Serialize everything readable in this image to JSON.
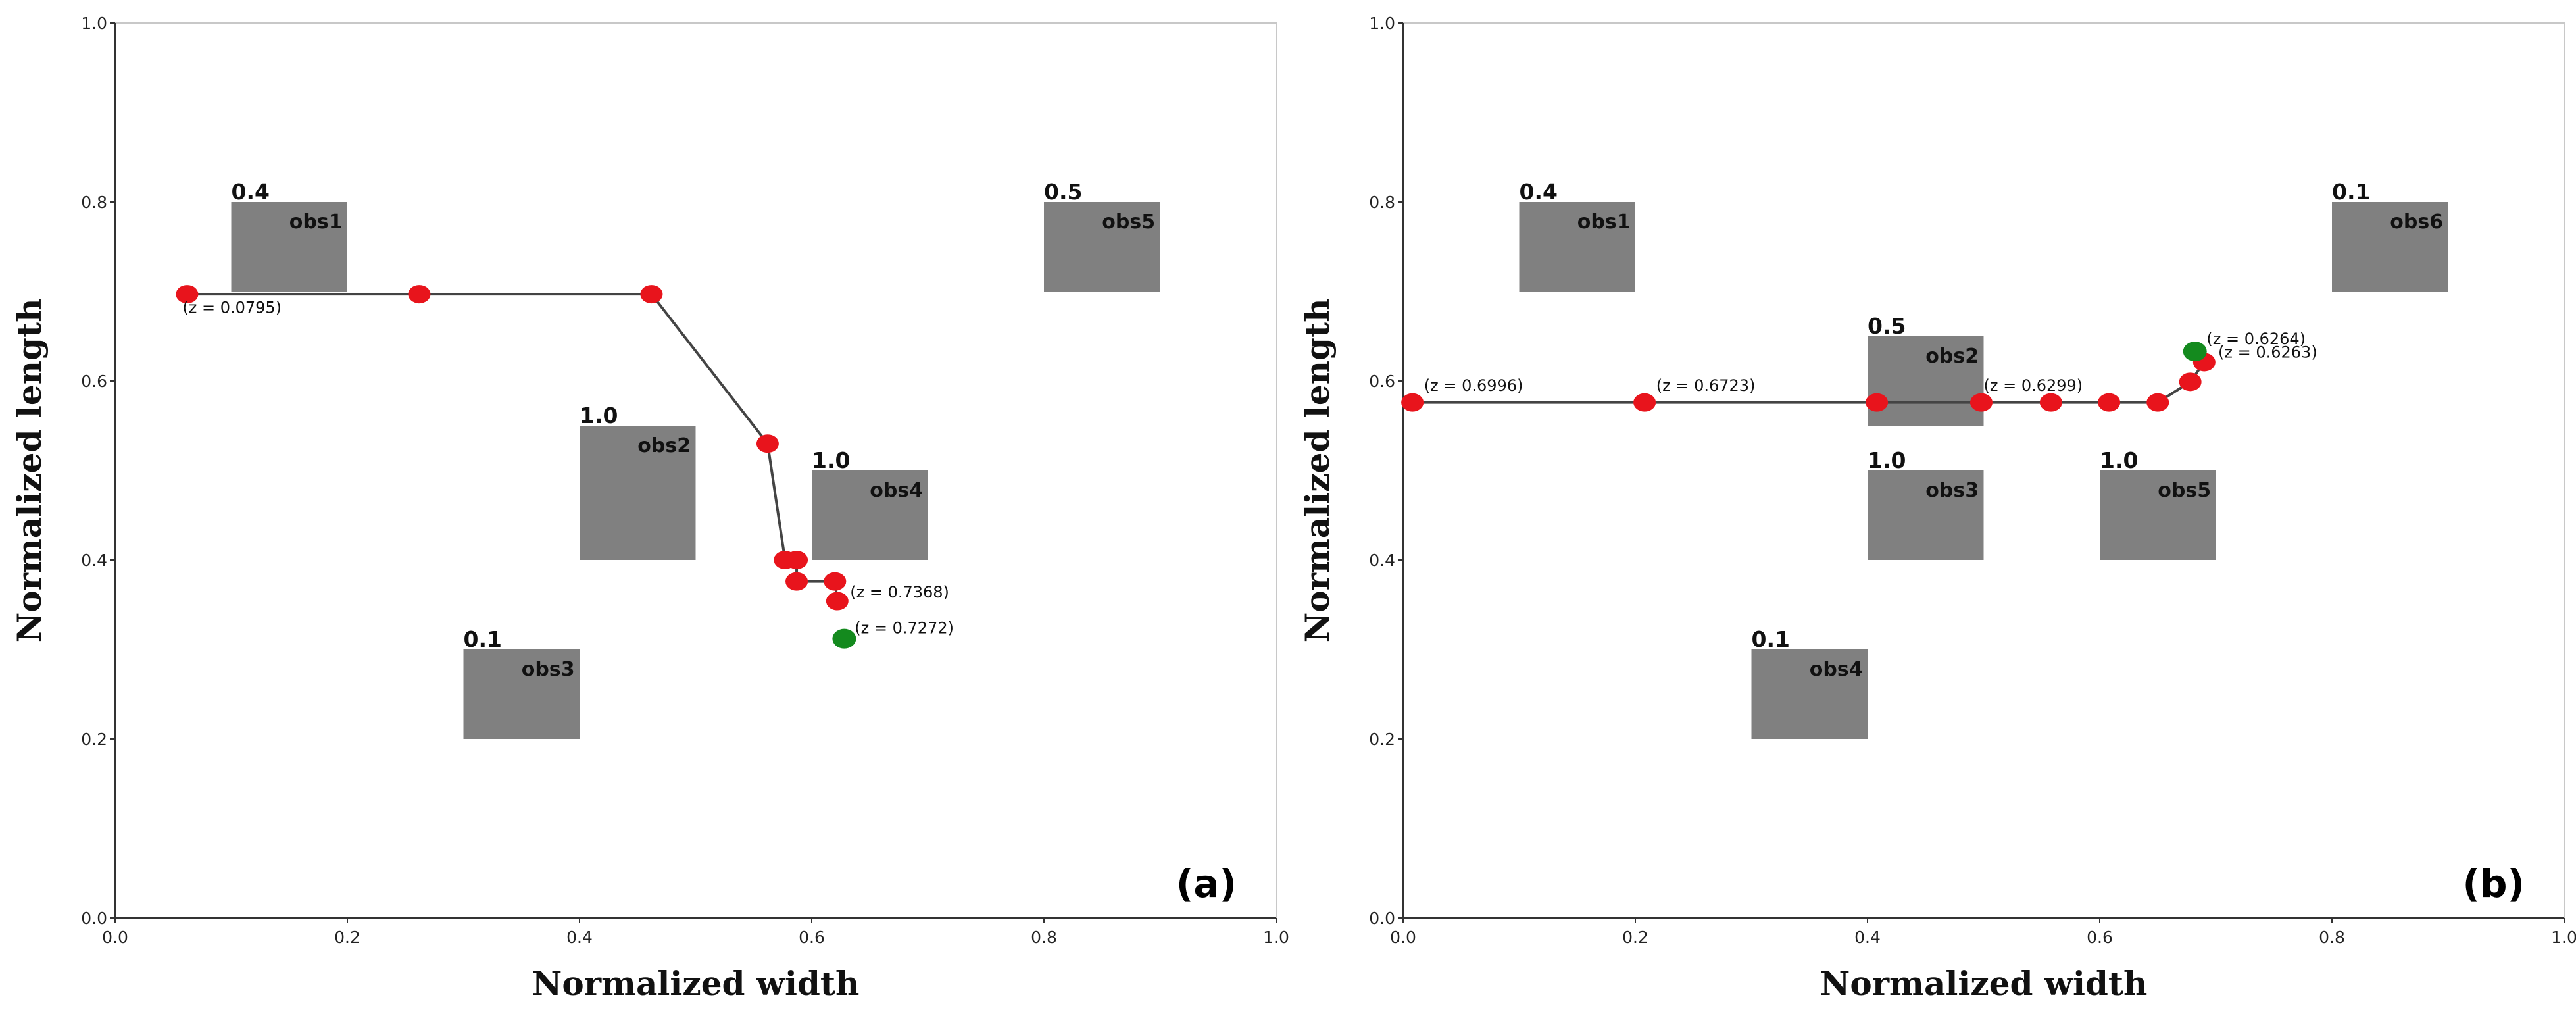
{
  "chart_data": [
    {
      "type": "scatter",
      "panel_label": "(a)",
      "xlabel": "Normalized width",
      "ylabel": "Normalized length",
      "xlim": [
        0.0,
        1.0
      ],
      "ylim": [
        0.0,
        1.0
      ],
      "x_ticks": [
        "0.0",
        "0.2",
        "0.4",
        "0.6",
        "0.8",
        "1.0"
      ],
      "y_ticks": [
        "0.0",
        "0.2",
        "0.4",
        "0.6",
        "0.8",
        "1.0"
      ],
      "grid": false,
      "obstacles": [
        {
          "name": "obs1",
          "value": "0.4",
          "x0": 0.1,
          "y0": 0.7,
          "x1": 0.2,
          "y1": 0.8
        },
        {
          "name": "obs2",
          "value": "1.0",
          "x0": 0.4,
          "y0": 0.4,
          "x1": 0.5,
          "y1": 0.55
        },
        {
          "name": "obs3",
          "value": "0.1",
          "x0": 0.3,
          "y0": 0.2,
          "x1": 0.4,
          "y1": 0.3
        },
        {
          "name": "obs4",
          "value": "1.0",
          "x0": 0.6,
          "y0": 0.4,
          "x1": 0.7,
          "y1": 0.5
        },
        {
          "name": "obs5",
          "value": "0.5",
          "x0": 0.8,
          "y0": 0.7,
          "x1": 0.9,
          "y1": 0.8
        }
      ],
      "path": {
        "x": [
          0.062,
          0.262,
          0.462,
          0.562,
          0.577,
          0.587,
          0.587,
          0.62,
          0.622
        ],
        "y": [
          0.697,
          0.697,
          0.697,
          0.53,
          0.4,
          0.4,
          0.376,
          0.376,
          0.354
        ]
      },
      "goal": {
        "x": 0.628,
        "y": 0.312
      },
      "annotations": [
        {
          "text": "(z = 0.0795)",
          "x": 0.058,
          "y": 0.676,
          "anchor": "start"
        },
        {
          "text": "(z = 0.7368)",
          "x": 0.633,
          "y": 0.358,
          "anchor": "start"
        },
        {
          "text": "(z = 0.7272)",
          "x": 0.637,
          "y": 0.318,
          "anchor": "start"
        }
      ]
    },
    {
      "type": "scatter",
      "panel_label": "(b)",
      "xlabel": "Normalized width",
      "ylabel": "Normalized length",
      "xlim": [
        0.0,
        1.0
      ],
      "ylim": [
        0.0,
        1.0
      ],
      "x_ticks": [
        "0.0",
        "0.2",
        "0.4",
        "0.6",
        "0.8",
        "1.0"
      ],
      "y_ticks": [
        "0.0",
        "0.2",
        "0.4",
        "0.6",
        "0.8",
        "1.0"
      ],
      "grid": false,
      "obstacles": [
        {
          "name": "obs1",
          "value": "0.4",
          "x0": 0.1,
          "y0": 0.7,
          "x1": 0.2,
          "y1": 0.8
        },
        {
          "name": "obs2",
          "value": "0.5",
          "x0": 0.4,
          "y0": 0.55,
          "x1": 0.5,
          "y1": 0.65
        },
        {
          "name": "obs3",
          "value": "1.0",
          "x0": 0.4,
          "y0": 0.4,
          "x1": 0.5,
          "y1": 0.5
        },
        {
          "name": "obs4",
          "value": "0.1",
          "x0": 0.3,
          "y0": 0.2,
          "x1": 0.4,
          "y1": 0.3
        },
        {
          "name": "obs5",
          "value": "1.0",
          "x0": 0.6,
          "y0": 0.4,
          "x1": 0.7,
          "y1": 0.5
        },
        {
          "name": "obs6",
          "value": "0.1",
          "x0": 0.8,
          "y0": 0.7,
          "x1": 0.9,
          "y1": 0.8
        }
      ],
      "path": {
        "x": [
          0.008,
          0.208,
          0.408,
          0.498,
          0.558,
          0.608,
          0.65,
          0.678,
          0.69
        ],
        "y": [
          0.576,
          0.576,
          0.576,
          0.576,
          0.576,
          0.576,
          0.576,
          0.599,
          0.621
        ]
      },
      "goal": {
        "x": 0.682,
        "y": 0.633
      },
      "annotations": [
        {
          "text": "(z = 0.6996)",
          "x": 0.018,
          "y": 0.589,
          "anchor": "start"
        },
        {
          "text": "(z = 0.6723)",
          "x": 0.218,
          "y": 0.589,
          "anchor": "start"
        },
        {
          "text": "(z = 0.6299)",
          "x": 0.5,
          "y": 0.589,
          "anchor": "start"
        },
        {
          "text": "(z = 0.6264)",
          "x": 0.692,
          "y": 0.641,
          "anchor": "start"
        },
        {
          "text": "(z = 0.6263)",
          "x": 0.702,
          "y": 0.626,
          "anchor": "start"
        }
      ]
    }
  ],
  "colors": {
    "obstacle": "#808080",
    "path_line": "#444444",
    "waypoint": "#e8141c",
    "goal": "#148a1e",
    "axis": "#333333"
  }
}
